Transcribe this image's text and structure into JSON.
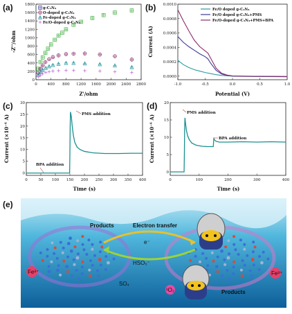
{
  "panel_labels": {
    "a": "(a)",
    "b": "(b)",
    "c": "(c)",
    "d": "(d)",
    "e": "(e)"
  },
  "colors": {
    "pure": "#3a3a9a",
    "o_doped": "#8a2b6a",
    "fe_doped": "#2a9aa0",
    "feo_doped": "#b04cc8",
    "green": "#3fae3f",
    "trace": "#18908f",
    "fe_ion": "#e8406a"
  },
  "chart_data": [
    {
      "type": "scatter",
      "panel": "a",
      "title": "",
      "xlabel": "Z'/ohm",
      "ylabel": "-Z''/ohm",
      "xlim": [
        0,
        2800
      ],
      "ylim": [
        0,
        1800
      ],
      "xticks": [
        "0",
        "400",
        "800",
        "1200",
        "1600",
        "2000",
        "2400",
        "2800"
      ],
      "yticks": [
        "0",
        "200",
        "400",
        "600",
        "800",
        "1000",
        "1200",
        "1400",
        "1600",
        "1800"
      ],
      "legend_position": "top-left",
      "series": [
        {
          "name": "g-C₃N₄",
          "marker": "square-plus",
          "x": [
            60,
            120,
            180,
            250,
            320,
            400,
            500,
            600,
            700,
            800,
            1000,
            1200,
            1500,
            1800,
            2100,
            2550
          ],
          "y": [
            260,
            420,
            530,
            640,
            740,
            840,
            950,
            1050,
            1120,
            1200,
            1310,
            1380,
            1470,
            1540,
            1600,
            1650
          ]
        },
        {
          "name": "O-doped g-C₃N₄",
          "marker": "circle-plus",
          "x": [
            60,
            120,
            180,
            250,
            350,
            450,
            600,
            800,
            1000,
            1300,
            1700,
            2100,
            2550
          ],
          "y": [
            160,
            260,
            340,
            420,
            490,
            540,
            580,
            610,
            620,
            625,
            600,
            560,
            480
          ]
        },
        {
          "name": "Fe-doped g-C₃N₄",
          "marker": "triangle-plus",
          "x": [
            60,
            120,
            180,
            260,
            350,
            450,
            600,
            800,
            1000,
            1300,
            1700,
            2100,
            2550
          ],
          "y": [
            110,
            180,
            230,
            280,
            320,
            350,
            380,
            400,
            400,
            390,
            370,
            340,
            300
          ]
        },
        {
          "name": "Fe/O-doped g-C₃N₄",
          "marker": "cross-plus",
          "x": [
            60,
            120,
            180,
            260,
            350,
            450,
            600,
            800,
            1000,
            1300,
            1700,
            2100,
            2550
          ],
          "y": [
            70,
            110,
            140,
            170,
            190,
            205,
            215,
            220,
            220,
            215,
            205,
            190,
            170
          ]
        }
      ]
    },
    {
      "type": "line",
      "panel": "b",
      "title": "",
      "xlabel": "Potential (V)",
      "ylabel": "Current (A)",
      "xlim": [
        -1.0,
        1.0
      ],
      "ylim": [
        -5e-05,
        0.001
      ],
      "xticks": [
        "-1.0",
        "-0.5",
        "0.0",
        "0.5",
        "1.0"
      ],
      "yticks": [
        "0.0000",
        "0.0002",
        "0.0004",
        "0.0006",
        "0.0008",
        "0.0010"
      ],
      "legend_position": "top-right",
      "series": [
        {
          "name": "Fe/O doped g-C₃N₄",
          "x": [
            -1.0,
            -0.9,
            -0.8,
            -0.7,
            -0.6,
            -0.5,
            -0.4,
            -0.3,
            -0.2,
            -0.1,
            0.0,
            0.2,
            0.4,
            0.6,
            0.8,
            1.0
          ],
          "y": [
            0.00022,
            0.00016,
            0.00012,
            9e-05,
            7e-05,
            5e-05,
            3.5e-05,
            2e-05,
            1e-05,
            5e-06,
            0.0,
            -3e-06,
            -5e-06,
            -6e-06,
            -7e-06,
            -8e-06
          ]
        },
        {
          "name": "Fe/O doped g-C₃N₄+PMS",
          "x": [
            -1.0,
            -0.9,
            -0.8,
            -0.7,
            -0.6,
            -0.5,
            -0.45,
            -0.4,
            -0.3,
            -0.2,
            -0.1,
            0.0,
            0.2,
            0.4,
            0.6,
            0.8,
            1.0
          ],
          "y": [
            0.00055,
            0.00047,
            0.00041,
            0.00036,
            0.00031,
            0.00027,
            0.00024,
            0.00018,
            8e-05,
            3e-05,
            1e-05,
            0.0,
            -2e-06,
            -4e-06,
            -5e-06,
            -6e-06,
            -7e-06
          ]
        },
        {
          "name": "Fe/O-doped g-C₃N₄+PMS+BPA",
          "x": [
            -1.0,
            -0.9,
            -0.8,
            -0.7,
            -0.6,
            -0.5,
            -0.45,
            -0.4,
            -0.3,
            -0.2,
            -0.1,
            0.0,
            0.2,
            0.4,
            0.6,
            0.8,
            1.0
          ],
          "y": [
            0.00092,
            0.00077,
            0.00063,
            0.0005,
            0.00041,
            0.00035,
            0.00032,
            0.00025,
            0.00011,
            4e-05,
            1.5e-05,
            3e-06,
            0.0,
            -2e-06,
            -3e-06,
            -4e-06,
            -5e-06
          ]
        }
      ]
    },
    {
      "type": "line",
      "panel": "c",
      "title": "",
      "xlabel": "Time (s)",
      "ylabel": "Current (×10⁻⁶ A)",
      "xlim": [
        0,
        400
      ],
      "ylim": [
        -1,
        30
      ],
      "xticks": [
        "0",
        "50",
        "100",
        "150",
        "200",
        "250",
        "300",
        "350",
        "400"
      ],
      "yticks": [
        "0",
        "5",
        "10",
        "15",
        "20",
        "25",
        "30"
      ],
      "annotations": [
        {
          "text": "BPA addition",
          "x": 55,
          "y": 0.5
        },
        {
          "text": "PMS addition",
          "x": 150,
          "y": 26
        }
      ],
      "series": [
        {
          "name": "",
          "x": [
            0,
            50,
            100,
            149,
            150,
            151,
            152,
            155,
            158,
            162,
            167,
            175,
            185,
            200,
            230,
            270,
            320,
            360,
            400
          ],
          "y": [
            0,
            0,
            0,
            0,
            8,
            20,
            26,
            24,
            20,
            16,
            13,
            11,
            10,
            9.2,
            8.6,
            8.3,
            8.3,
            8.4,
            8.4
          ]
        }
      ]
    },
    {
      "type": "line",
      "panel": "d",
      "title": "",
      "xlabel": "Time (s)",
      "ylabel": "Current (×10⁻⁶ A)",
      "xlim": [
        0,
        400
      ],
      "ylim": [
        -1,
        20
      ],
      "xticks": [
        "0",
        "100",
        "200",
        "300",
        "400"
      ],
      "yticks": [
        "0",
        "5",
        "10",
        "15",
        "20"
      ],
      "annotations": [
        {
          "text": "PMS addition",
          "x": 50,
          "y": 15
        },
        {
          "text": "BPA addition",
          "x": 150,
          "y": 9
        }
      ],
      "series": [
        {
          "name": "",
          "x": [
            0,
            48,
            49,
            50,
            51,
            53,
            56,
            60,
            66,
            75,
            90,
            110,
            130,
            149,
            150,
            151,
            153,
            156,
            160,
            170,
            200,
            250,
            300,
            350,
            400
          ],
          "y": [
            0,
            0,
            5,
            13,
            15.6,
            14,
            12,
            10.5,
            9.3,
            8.3,
            7.7,
            7.4,
            7.3,
            7.3,
            8.5,
            9.6,
            9.3,
            9.0,
            8.8,
            8.6,
            8.6,
            8.7,
            8.6,
            8.7,
            8.6
          ]
        }
      ]
    }
  ],
  "schematic": {
    "products_left": "Products",
    "products_right": "Products",
    "electron_transfer": "Electron transfer",
    "hso5": "HSO₅⁻",
    "so4": "SO₄",
    "singlet_o2": "¹O₂",
    "fe3": "Fe³⁺",
    "e_minus": "e⁻"
  }
}
